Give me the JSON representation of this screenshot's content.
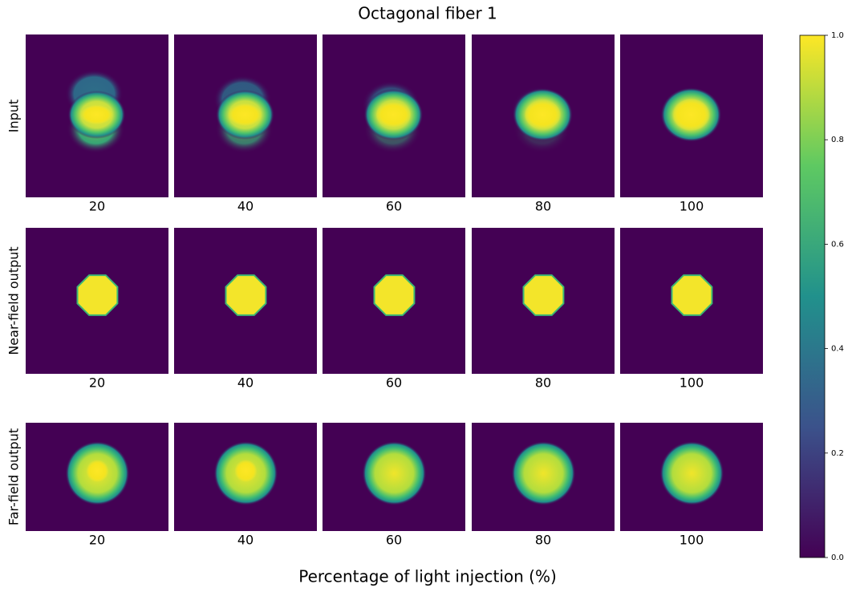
{
  "chart_data": {
    "type": "image-grid",
    "title": "Octagonal fiber 1",
    "xlabel": "Percentage of light injection (%)",
    "rows": [
      "Input",
      "Near-field output",
      "Far-field output"
    ],
    "categories": [
      20,
      40,
      60,
      80,
      100
    ],
    "colorbar": {
      "ylim": [
        0,
        1
      ],
      "yticks": [
        {
          "value": 0,
          "label": "0.0"
        },
        {
          "value": 0.2,
          "label": "0.2"
        },
        {
          "value": 0.4,
          "label": "0.4"
        },
        {
          "value": 0.6,
          "label": "0.6"
        },
        {
          "value": 0.8,
          "label": "0.8"
        },
        {
          "value": 1,
          "label": "1.0"
        }
      ]
    }
  }
}
